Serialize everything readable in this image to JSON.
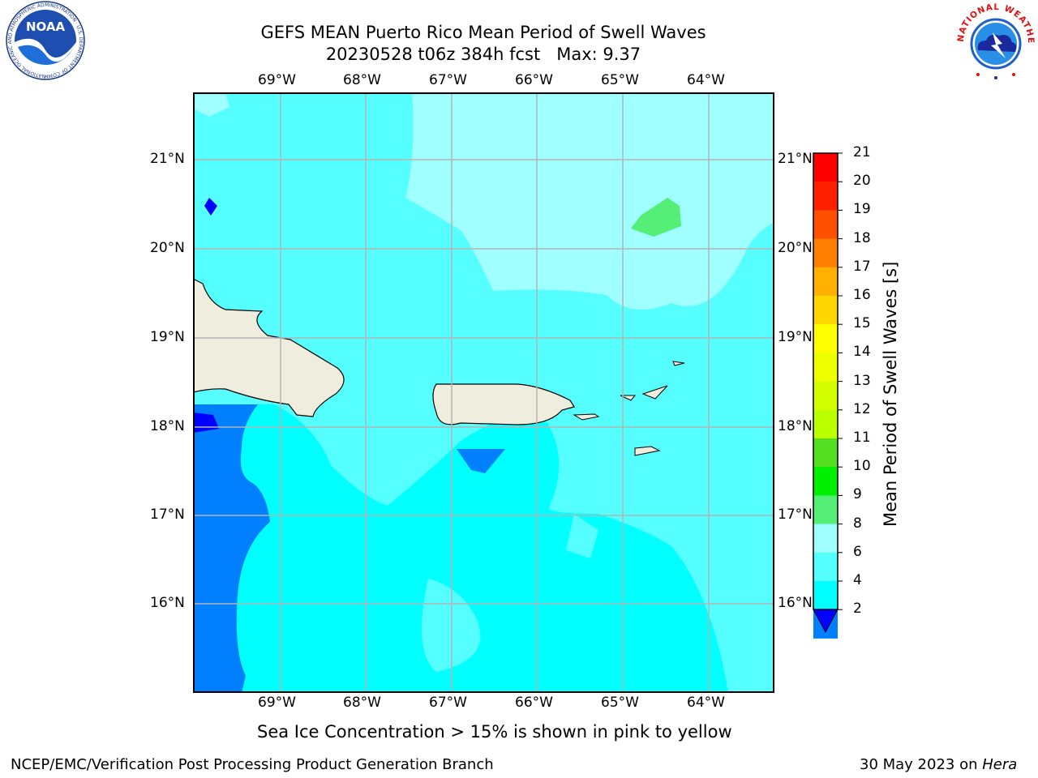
{
  "title": {
    "line1": "GEFS MEAN Puerto Rico Mean Period of Swell Waves",
    "line2": "20230528 t06z 384h fcst   Max: 9.37"
  },
  "map": {
    "lon_labels": [
      "69°W",
      "68°W",
      "67°W",
      "66°W",
      "65°W",
      "64°W"
    ],
    "lat_labels": [
      "21°N",
      "20°N",
      "19°N",
      "18°N",
      "17°N",
      "16°N"
    ],
    "grid": true,
    "colors": {
      "land": "#efedde",
      "sea_le2": "#0000ff",
      "sea_2_4": "#0080ff",
      "sea_4_6": "#00ffff",
      "sea_6_8": "#55ffff",
      "sea_8_9": "#a0ffff",
      "sea_9_10": "#55ee77",
      "grid": "#b4b4b4"
    }
  },
  "colorbar": {
    "label": "Mean Period of Swell Waves [s]",
    "ticks": [
      "21",
      "20",
      "19",
      "18",
      "17",
      "16",
      "15",
      "14",
      "13",
      "12",
      "11",
      "10",
      "9",
      "8",
      "6",
      "4",
      "2"
    ],
    "colors": [
      "#ff0000",
      "#ff2000",
      "#ff5000",
      "#ff8000",
      "#ffb000",
      "#ffd700",
      "#ffff00",
      "#eeff00",
      "#d4ff00",
      "#bbff00",
      "#55dd22",
      "#00ee00",
      "#55ee77",
      "#a0ffff",
      "#55ffff",
      "#00ffff",
      "#0080ff"
    ],
    "extend_color": "#0000ff"
  },
  "note": "Sea Ice Concentration > 15% is shown in pink to yellow",
  "footer": {
    "left": "NCEP/EMC/Verification Post Processing Product Generation Branch",
    "right_prefix": "30 May 2023 on ",
    "right_host": "Hera"
  },
  "logos": {
    "noaa_text": "NOAA",
    "noaa_ring": "NATIONAL OCEANIC AND ATMOSPHERIC ADMINISTRATION · U.S. DEPARTMENT OF COMMERCE",
    "nws_ring": "NATIONAL WEATHER SERVICE"
  }
}
